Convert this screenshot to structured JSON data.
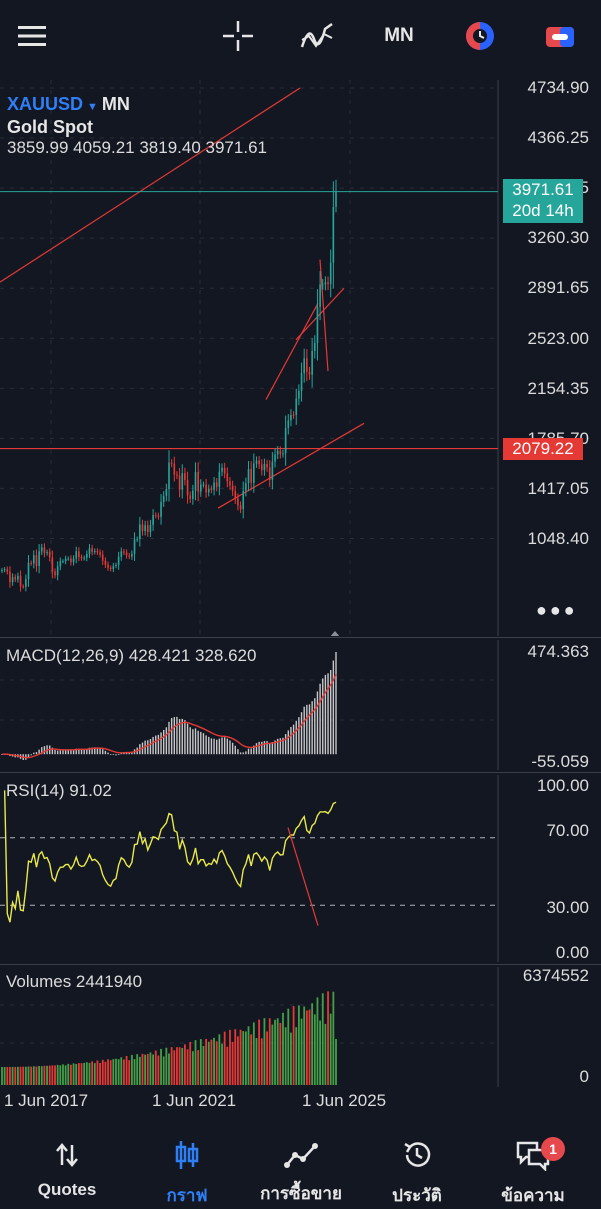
{
  "toolbar": {
    "timeframe": "MN"
  },
  "instrument": {
    "symbol": "XAUUSD",
    "timeframe": "MN",
    "name": "Gold Spot",
    "ohlc": "3859.99 4059.21 3819.40 3971.61"
  },
  "price_axis": {
    "labels": [
      "4734.90",
      "4366.25",
      "3628.95",
      "3260.30",
      "2891.65",
      "2523.00",
      "2154.35",
      "1785.70",
      "1417.05",
      "1048.40"
    ],
    "last_price": "3971.61",
    "countdown": "20d 14h",
    "hline_label": "2079.22",
    "colors": {
      "last_price_bg": "#26a69a",
      "hline_bg": "#e53935"
    }
  },
  "macd": {
    "title": "MACD(12,26,9) 428.421 328.620",
    "axis_top": "474.363",
    "axis_bottom": "-55.059"
  },
  "rsi": {
    "title": "RSI(14) 91.02",
    "levels": [
      "100.00",
      "70.00",
      "30.00",
      "0.00"
    ]
  },
  "volumes": {
    "title": "Volumes 2441940",
    "axis_top": "6374552",
    "axis_bottom": "0"
  },
  "time_axis": {
    "labels": [
      "1 Jun 2017",
      "1 Jun 2021",
      "1 Jun 2025"
    ]
  },
  "nav": {
    "items": [
      {
        "label": "Quotes",
        "icon": "quotes-icon"
      },
      {
        "label": "กราฟ",
        "icon": "chart-icon"
      },
      {
        "label": "การซื้อขาย",
        "icon": "trade-icon"
      },
      {
        "label": "ประวัติ",
        "icon": "history-icon"
      },
      {
        "label": "ข้อความ",
        "icon": "messages-icon",
        "badge": "1"
      }
    ],
    "active": "กราฟ"
  },
  "chart_data": {
    "type": "candlestick",
    "symbol": "XAUUSD",
    "timeframe": "MN",
    "x": [
      "2015-04",
      "2015-05",
      "2015-06",
      "2015-07",
      "2015-08",
      "2015-09",
      "2015-10",
      "2015-11",
      "2015-12",
      "2016-01",
      "2016-02",
      "2016-03",
      "2016-04",
      "2016-05",
      "2016-06",
      "2016-07",
      "2016-08",
      "2016-09",
      "2016-10",
      "2016-11",
      "2016-12",
      "2017-01",
      "2017-02",
      "2017-03",
      "2017-04",
      "2017-05",
      "2017-06",
      "2017-07",
      "2017-08",
      "2017-09",
      "2017-10",
      "2017-11",
      "2017-12",
      "2018-01",
      "2018-02",
      "2018-03",
      "2018-04",
      "2018-05",
      "2018-06",
      "2018-07",
      "2018-08",
      "2018-09",
      "2018-10",
      "2018-11",
      "2018-12",
      "2019-01",
      "2019-02",
      "2019-03",
      "2019-04",
      "2019-05",
      "2019-06",
      "2019-07",
      "2019-08",
      "2019-09",
      "2019-10",
      "2019-11",
      "2019-12",
      "2020-01",
      "2020-02",
      "2020-03",
      "2020-04",
      "2020-05",
      "2020-06",
      "2020-07",
      "2020-08",
      "2020-09",
      "2020-10",
      "2020-11",
      "2020-12",
      "2021-01",
      "2021-02",
      "2021-03",
      "2021-04",
      "2021-05",
      "2021-06",
      "2021-07",
      "2021-08",
      "2021-09",
      "2021-10",
      "2021-11",
      "2021-12",
      "2022-01",
      "2022-02",
      "2022-03",
      "2022-04",
      "2022-05",
      "2022-06",
      "2022-07",
      "2022-08",
      "2022-09",
      "2022-10",
      "2022-11",
      "2022-12",
      "2023-01",
      "2023-02",
      "2023-03",
      "2023-04",
      "2023-05",
      "2023-06",
      "2023-07",
      "2023-08",
      "2023-09",
      "2023-10",
      "2023-11",
      "2023-12",
      "2024-01",
      "2024-02",
      "2024-03",
      "2024-04",
      "2024-05",
      "2024-06",
      "2024-07",
      "2024-08",
      "2024-09",
      "2024-10",
      "2024-11",
      "2024-12",
      "2025-01",
      "2025-02",
      "2025-03",
      "2025-04",
      "2025-05",
      "2025-06",
      "2025-07",
      "2025-08",
      "2025-09",
      "2025-10"
    ],
    "close": [
      1184,
      1190,
      1172,
      1095,
      1133,
      1115,
      1142,
      1065,
      1061,
      1118,
      1238,
      1233,
      1293,
      1214,
      1322,
      1351,
      1309,
      1316,
      1277,
      1173,
      1146,
      1211,
      1249,
      1249,
      1268,
      1269,
      1242,
      1269,
      1322,
      1280,
      1271,
      1275,
      1303,
      1345,
      1318,
      1325,
      1315,
      1298,
      1253,
      1224,
      1201,
      1192,
      1215,
      1222,
      1282,
      1321,
      1313,
      1292,
      1283,
      1305,
      1409,
      1413,
      1520,
      1472,
      1514,
      1464,
      1517,
      1589,
      1585,
      1577,
      1686,
      1730,
      1781,
      1975,
      1968,
      1887,
      1879,
      1777,
      1898,
      1848,
      1734,
      1708,
      1769,
      1906,
      1763,
      1814,
      1814,
      1757,
      1783,
      1775,
      1829,
      1797,
      1909,
      1937,
      1897,
      1837,
      1807,
      1766,
      1711,
      1661,
      1633,
      1768,
      1824,
      1928,
      1827,
      1969,
      1990,
      1962,
      1919,
      1965,
      1940,
      1849,
      1983,
      2036,
      2063,
      2039,
      2044,
      2230,
      2286,
      2327,
      2326,
      2448,
      2503,
      2635,
      2744,
      2643,
      2624,
      2798,
      2858,
      3123,
      3289,
      3289,
      3303,
      3290,
      3448,
      3858,
      3971.61
    ],
    "last_ohlc": {
      "open": 3859.99,
      "high": 4059.21,
      "low": 3819.4,
      "close": 3971.61
    },
    "horizontal_line": 2079.22,
    "ylim": [
      1048.4,
      4734.9
    ]
  }
}
